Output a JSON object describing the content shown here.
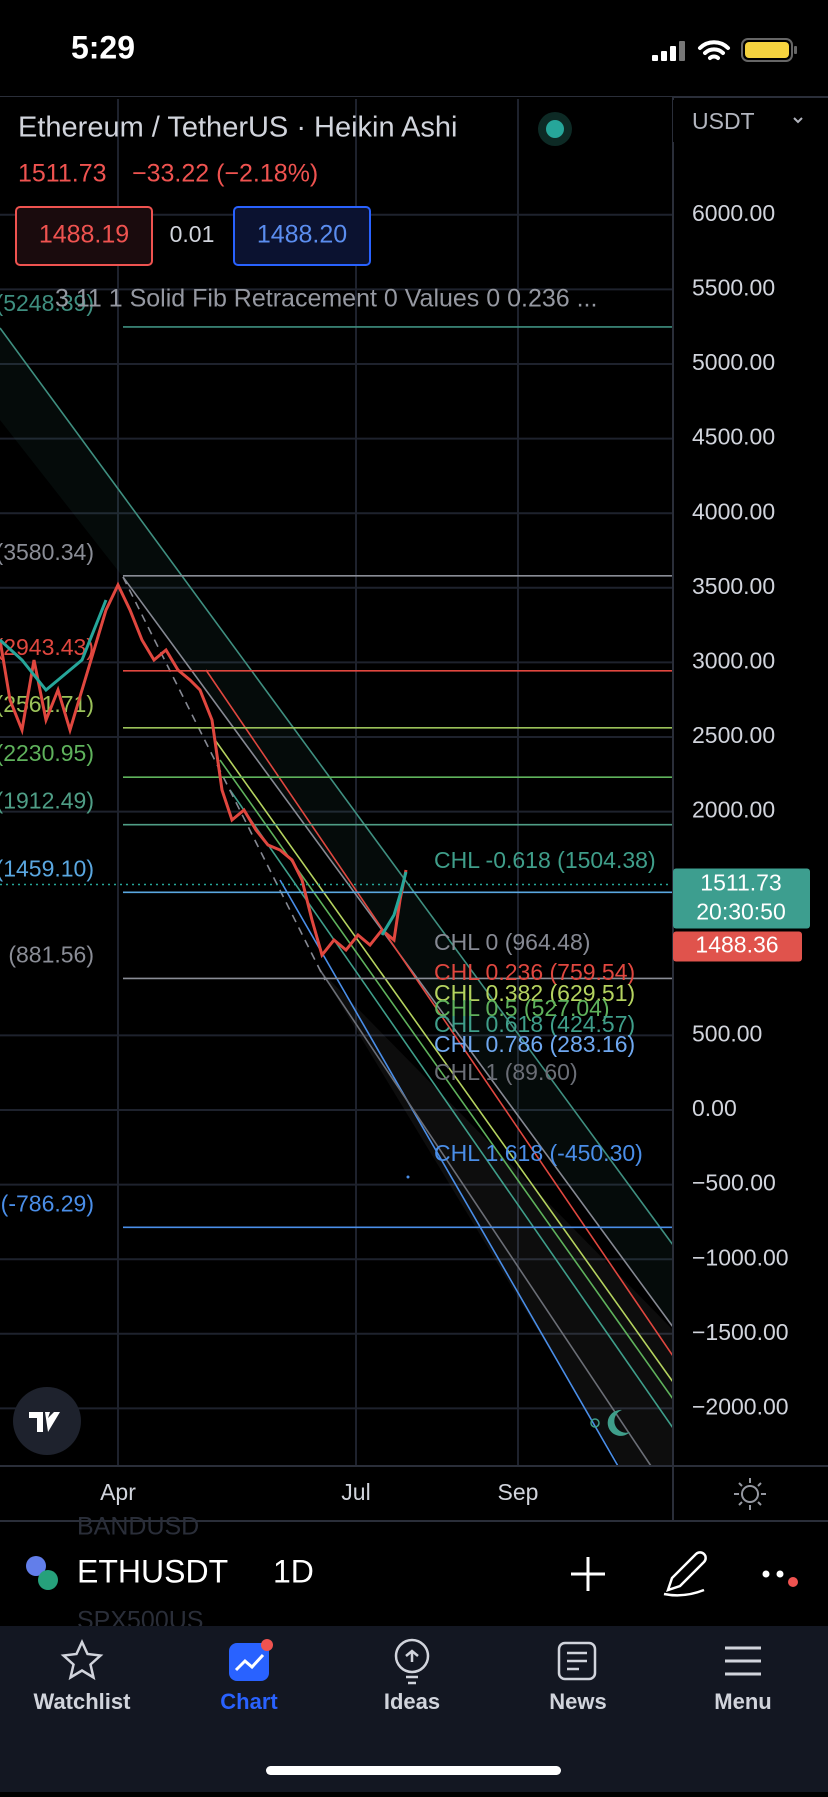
{
  "status_bar": {
    "time": "5:29"
  },
  "header": {
    "title": "Ethereum / TetherUS · Heikin Ashi",
    "currency": "USDT",
    "last": 1511.73,
    "change": "−33.22 (−2.18%)",
    "bid": "1488.19",
    "spread": "0.01",
    "ask": "1488.20",
    "indicator": "3 11 1 Solid Fib Retracement 0 Values 0 0.236 ..."
  },
  "price_axis": {
    "ticks": [
      {
        "value": 6000,
        "label": "6000.00"
      },
      {
        "value": 5500,
        "label": "5500.00"
      },
      {
        "value": 5000,
        "label": "5000.00"
      },
      {
        "value": 4500,
        "label": "4500.00"
      },
      {
        "value": 4000,
        "label": "4000.00"
      },
      {
        "value": 3500,
        "label": "3500.00"
      },
      {
        "value": 3000,
        "label": "3000.00"
      },
      {
        "value": 2500,
        "label": "2500.00"
      },
      {
        "value": 2000,
        "label": "2000.00"
      },
      {
        "value": 500,
        "label": "500.00"
      },
      {
        "value": 0,
        "label": "0.00"
      },
      {
        "value": -500,
        "label": "−500.00"
      },
      {
        "value": -1000,
        "label": "−1000.00"
      },
      {
        "value": -1500,
        "label": "−1500.00"
      },
      {
        "value": -2000,
        "label": "−2000.00"
      }
    ],
    "last_price": 1511.73,
    "countdown": "20:30:50",
    "mark_price": "1488.36"
  },
  "time_axis": {
    "labels": [
      "Apr",
      "Jul",
      "Sep"
    ]
  },
  "fib_levels": [
    {
      "value": 5248.39,
      "label": "(5248.39)",
      "color": "#3f8f80"
    },
    {
      "value": 3580.34,
      "label": "(3580.34)",
      "color": "#8a8d96"
    },
    {
      "value": 2943.43,
      "label": "(2943.43)",
      "color": "#e0473f"
    },
    {
      "value": 2561.71,
      "label": "(2561.71)",
      "color": "#9bc25a"
    },
    {
      "value": 2230.95,
      "label": "(2230.95)",
      "color": "#5fb25c"
    },
    {
      "value": 1912.49,
      "label": "(1912.49)",
      "color": "#4f9e86"
    },
    {
      "value": 1459.1,
      "label": "(1459.10)",
      "color": "#5aa7e0"
    },
    {
      "value": 881.56,
      "label": "(881.56)",
      "color": "#8a8d96"
    },
    {
      "value": -786.29,
      "label": "(-786.29)",
      "color": "#4a8ee8"
    }
  ],
  "channel_labels": [
    {
      "label": "CHL -0.618 (1504.38)",
      "color": "#3f9e8a"
    },
    {
      "label": "CHL 0 (964.48)",
      "color": "#868993"
    },
    {
      "label": "CHL 0.236 (759.54)",
      "color": "#e0473f"
    },
    {
      "label": "CHL 0.382 (629.51)",
      "color": "#b5d35f"
    },
    {
      "label": "CHL 0.5 (527.04)",
      "color": "#5fb25c"
    },
    {
      "label": "CHL 0.618 (424.57)",
      "color": "#3f9e8a"
    },
    {
      "label": "CHL 0.786 (283.16)",
      "color": "#6fa8f0"
    },
    {
      "label": "CHL 1 (89.60)",
      "color": "#6b6e76"
    },
    {
      "label": "CHL 1.618 (-450.30)",
      "color": "#4a8ee8"
    }
  ],
  "symbol_bar": {
    "symbol": "ETHUSDT",
    "interval": "1D",
    "ghost": [
      "BANDUSD",
      "SPX500US"
    ]
  },
  "tabs": [
    "Watchlist",
    "Chart",
    "Ideas",
    "News",
    "Menu"
  ]
}
